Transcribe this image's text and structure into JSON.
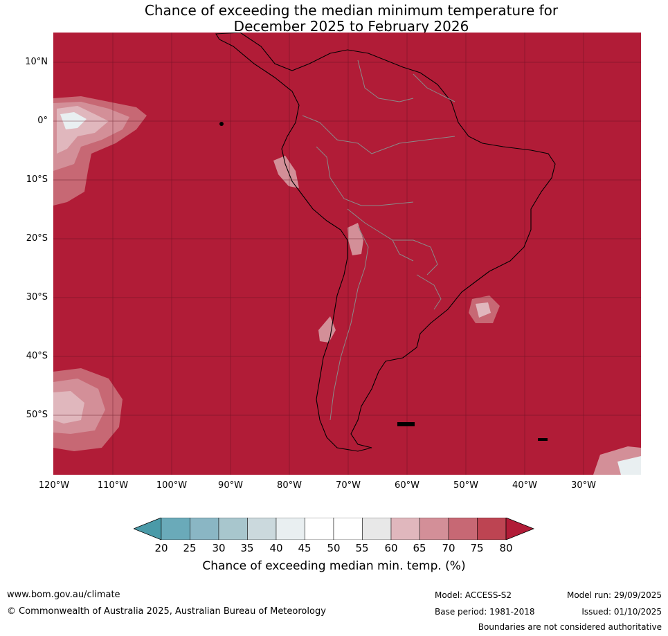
{
  "title": {
    "line1": "Chance of exceeding the median minimum temperature for",
    "line2": "December 2025 to February 2026"
  },
  "map": {
    "region": "South America",
    "background_value": "80+",
    "latitude_labels": [
      "10°N",
      "0°",
      "10°S",
      "20°S",
      "30°S",
      "40°S",
      "50°S"
    ],
    "longitude_labels": [
      "120°W",
      "110°W",
      "100°W",
      "90°W",
      "80°W",
      "70°W",
      "60°W",
      "50°W",
      "40°W",
      "30°W"
    ]
  },
  "colorbar": {
    "label": "Chance of exceeding median min. temp. (%)",
    "ticks": [
      "20",
      "25",
      "30",
      "35",
      "40",
      "45",
      "50",
      "55",
      "60",
      "65",
      "70",
      "75",
      "80"
    ],
    "colors": {
      "below_20": "#4a9aa8",
      "20_25": "#6aaab9",
      "25_30": "#8ab6c4",
      "30_35": "#a8c6cd",
      "35_40": "#cbd9dd",
      "40_45": "#e9eff1",
      "45_50": "#ffffff",
      "50_55": "#ffffff",
      "55_60": "#e8e8e8",
      "60_65": "#e0b7bd",
      "65_70": "#d38f98",
      "70_75": "#c76874",
      "75_80": "#bd4452",
      "above_80": "#b11c37"
    }
  },
  "footer": {
    "website": "www.bom.gov.au/climate",
    "copyright": "© Commonwealth of Australia 2025, Australian Bureau of Meteorology",
    "model": "Model: ACCESS-S2",
    "base_period": "Base period: 1981-2018",
    "model_run": "Model run: 29/09/2025",
    "issued": "Issued: 01/10/2025",
    "disclaimer": "Boundaries are not considered authoritative"
  }
}
